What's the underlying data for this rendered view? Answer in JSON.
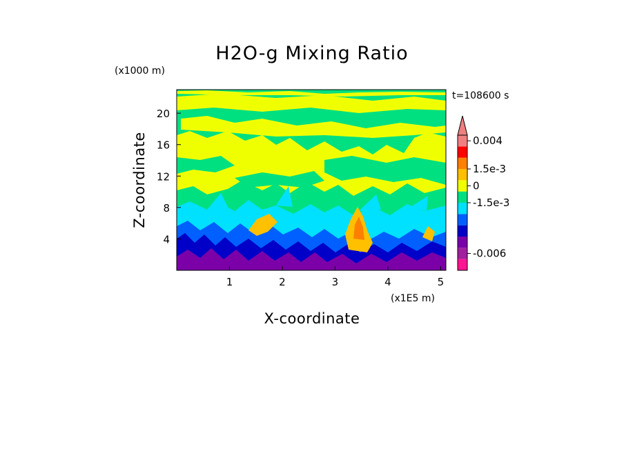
{
  "chart_data": {
    "type": "heatmap",
    "title": "H2O-g Mixing Ratio",
    "xlabel": "X-coordinate",
    "ylabel": "Z-coordinate",
    "x_scale_note": "(x1E5 m)",
    "y_scale_note": "(x1000 m)",
    "time_label": "t=108600 s",
    "x_ticks": [
      1,
      2,
      3,
      4,
      5
    ],
    "y_ticks": [
      4,
      8,
      12,
      16,
      20
    ],
    "xlim": [
      0,
      5.1
    ],
    "ylim": [
      0,
      23
    ],
    "colorbar": {
      "labels": [
        {
          "text": "0.004",
          "value": 0.004
        },
        {
          "text": "1.5e-3",
          "value": 0.0015
        },
        {
          "text": "0",
          "value": 0
        },
        {
          "text": "-1.5e-3",
          "value": -0.0015
        },
        {
          "text": "-0.006",
          "value": -0.006
        }
      ],
      "colors": [
        "#ff1493",
        "#a020a0",
        "#7b00a8",
        "#0000c8",
        "#0060ff",
        "#00e0ff",
        "#00e080",
        "#f0ff00",
        "#ffc000",
        "#ff8000",
        "#ff0000",
        "#f08080"
      ]
    },
    "colors": {
      "purple": "#7b00a8",
      "navy": "#0000c8",
      "blue": "#0060ff",
      "cyan": "#00e0ff",
      "green": "#00e080",
      "yellow": "#f0ff00",
      "gold": "#ffc000",
      "orange": "#ff8000"
    }
  }
}
